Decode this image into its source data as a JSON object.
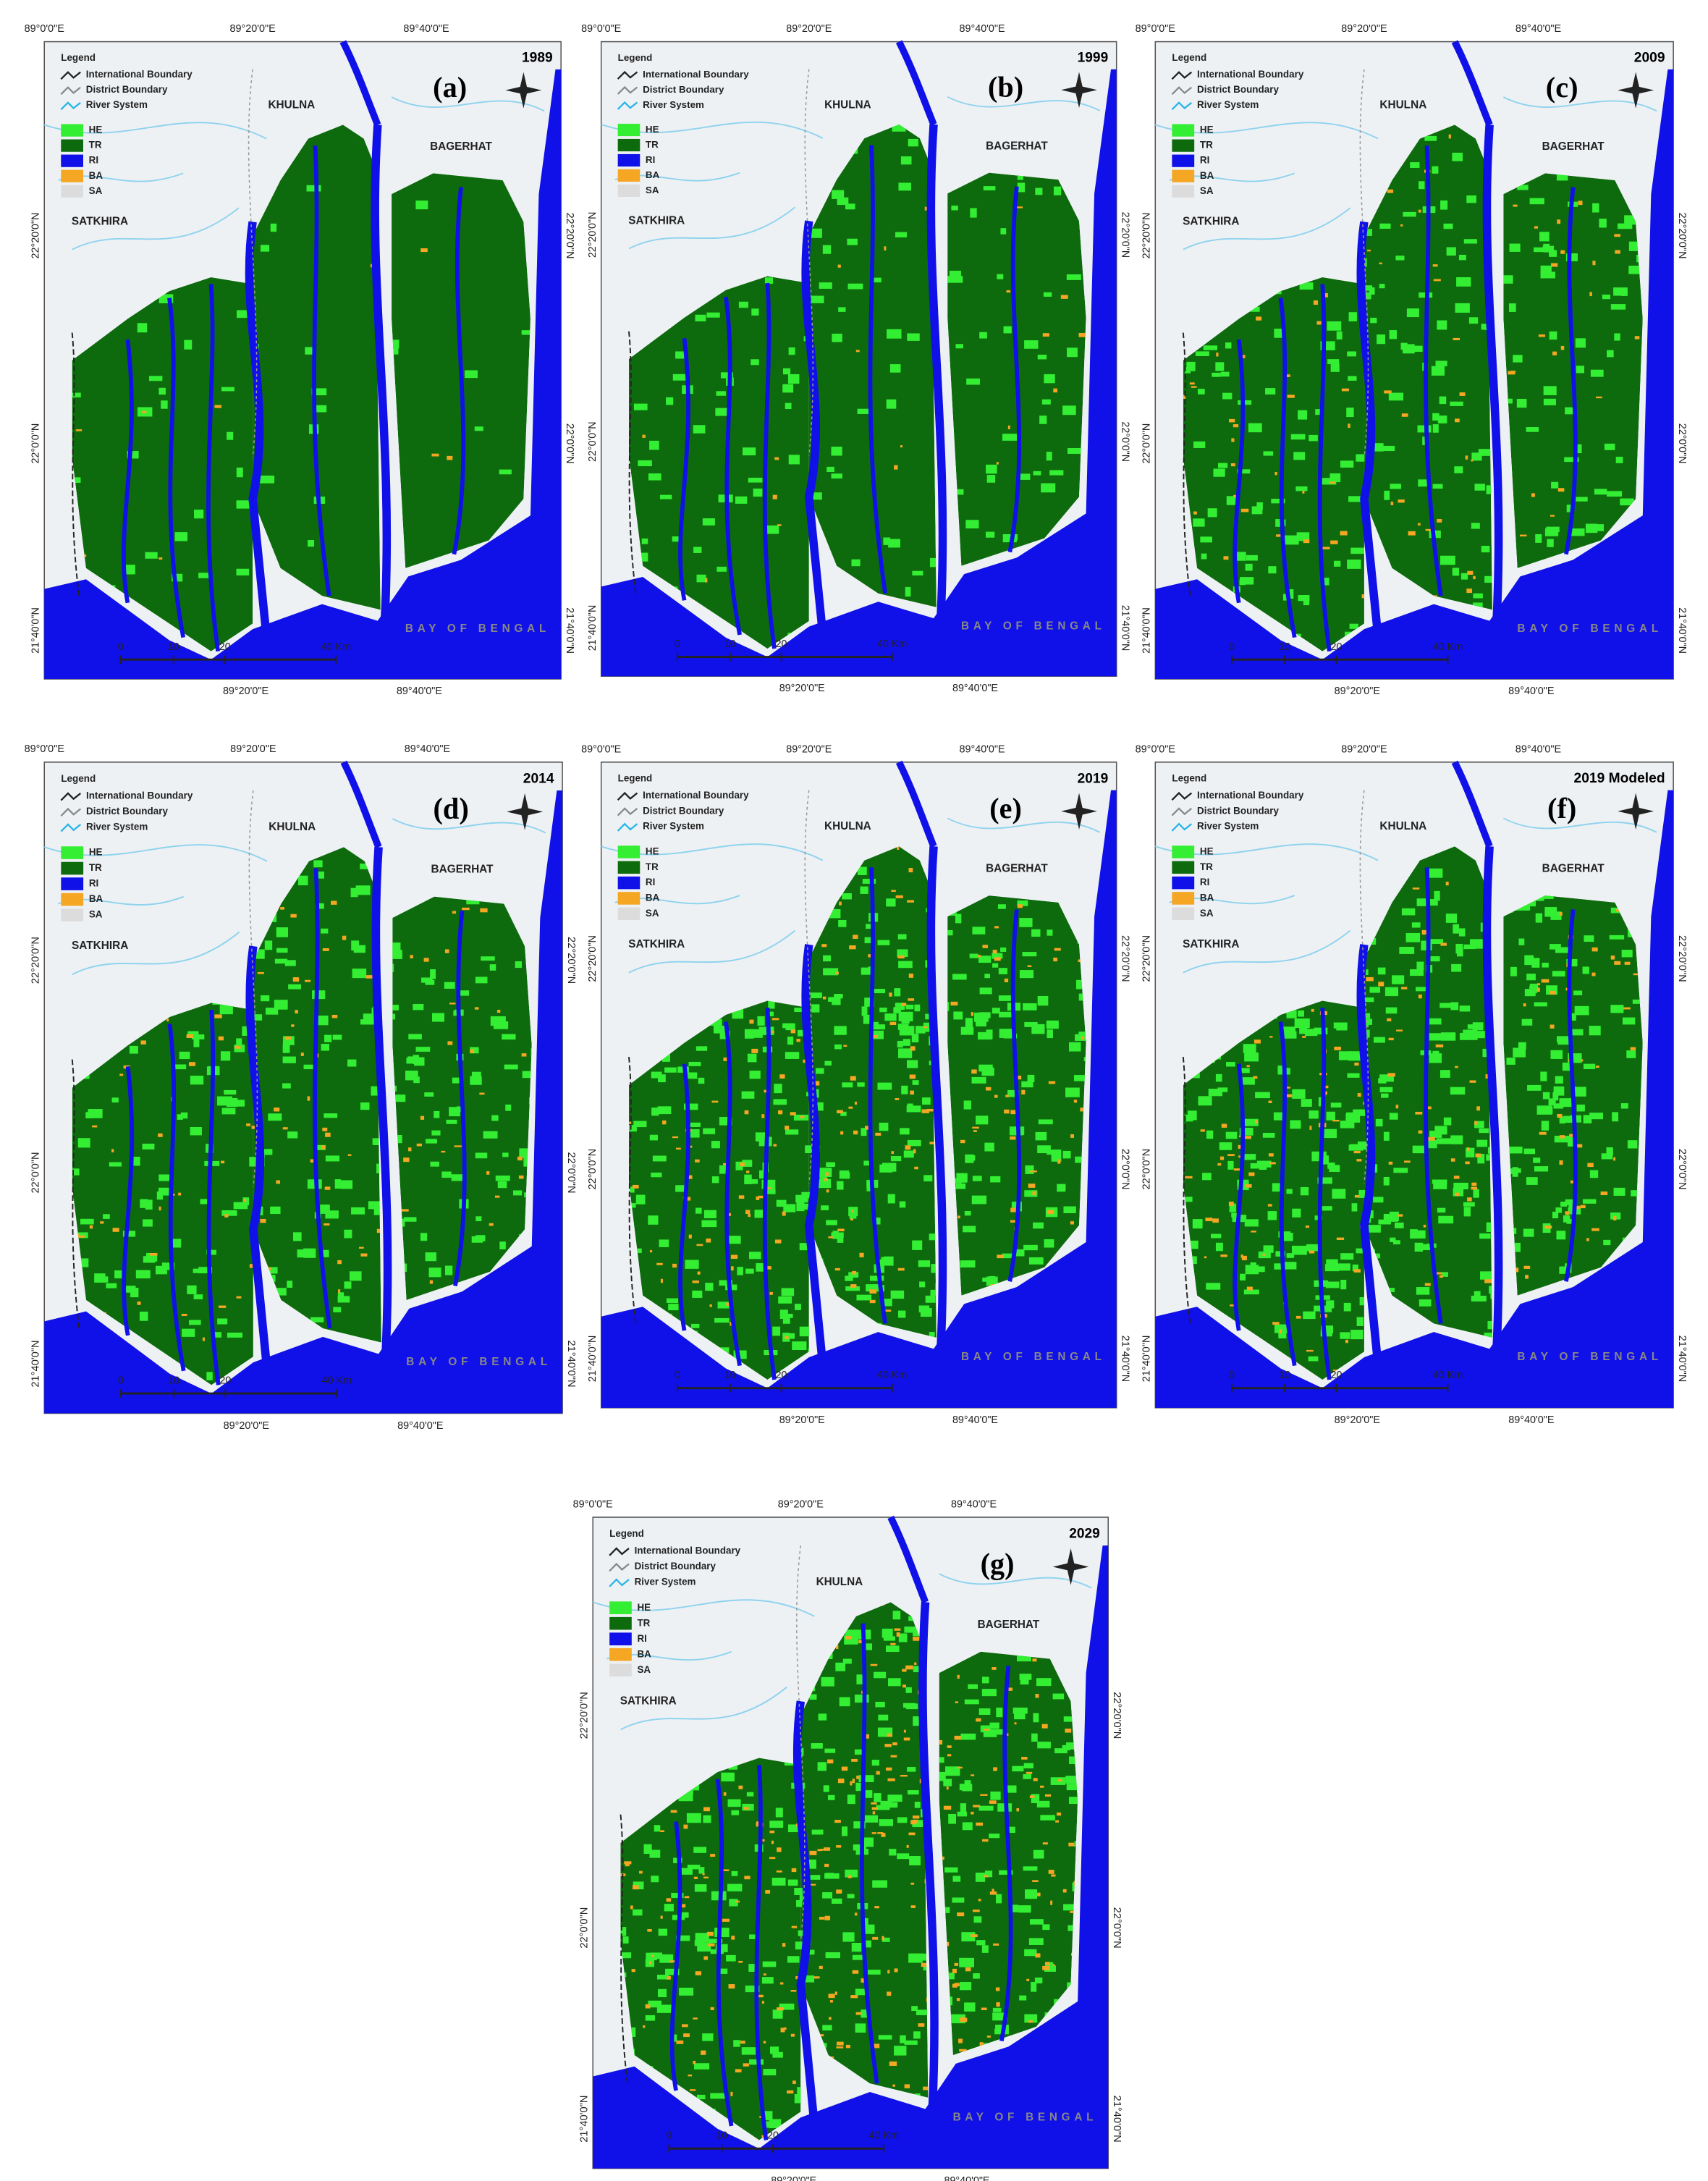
{
  "legend": {
    "title": "Legend",
    "lines": [
      {
        "label": "International Boundary",
        "color": "#222222"
      },
      {
        "label": "District Boundary",
        "color": "#888888"
      },
      {
        "label": "River System",
        "color": "#29b6e8"
      }
    ],
    "classes": [
      {
        "label": "HE",
        "color": "#33ee33"
      },
      {
        "label": "TR",
        "color": "#0d6b0d"
      },
      {
        "label": "RI",
        "color": "#1010e8"
      },
      {
        "label": "BA",
        "color": "#f5a623"
      },
      {
        "label": "SA",
        "color": "#dcdcdc"
      }
    ]
  },
  "places": [
    "KHULNA",
    "BAGERHAT",
    "SATKHIRA",
    "BAY OF BENGAL"
  ],
  "lon_labels": [
    "89°0'0\"E",
    "89°20'0\"E",
    "89°40'0\"E"
  ],
  "lat_labels": [
    "22°20'0\"N",
    "22°0'0\"N",
    "21°40'0\"N"
  ],
  "scale_labels": [
    "0",
    "10",
    "20",
    "40 Km"
  ],
  "panels": [
    {
      "label": "(a)",
      "year": "1989"
    },
    {
      "label": "(b)",
      "year": "1999"
    },
    {
      "label": "(c)",
      "year": "2009"
    },
    {
      "label": "(d)",
      "year": "2014"
    },
    {
      "label": "(e)",
      "year": "2019"
    },
    {
      "label": "(f)",
      "year": "2019 Modeled"
    },
    {
      "label": "(g)",
      "year": "2029"
    }
  ]
}
